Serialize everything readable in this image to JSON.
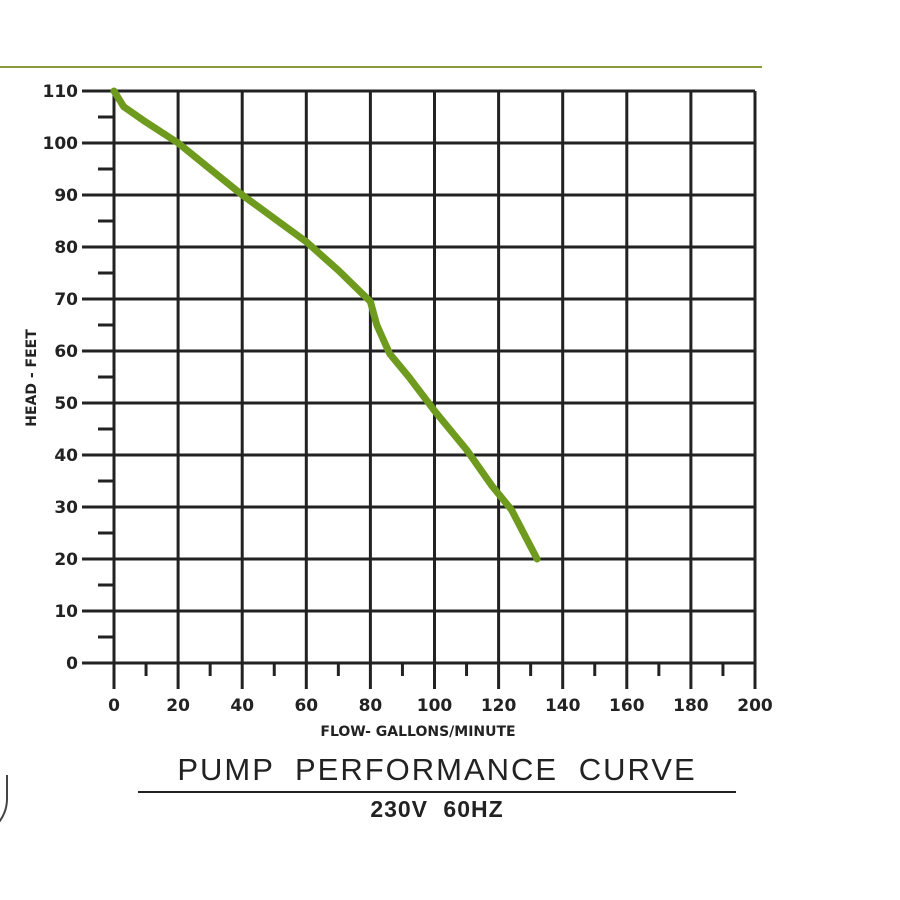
{
  "chart_data": {
    "type": "line",
    "title": "PUMP PERFORMANCE CURVE",
    "subtitle": "230V 60HZ",
    "xlabel": "FLOW- GALLONS/MINUTE",
    "ylabel": "HEAD - FEET",
    "xlim": [
      0,
      200
    ],
    "ylim": [
      0,
      110
    ],
    "x_ticks": [
      0,
      20,
      40,
      60,
      80,
      100,
      120,
      140,
      160,
      180,
      200
    ],
    "y_ticks": [
      0,
      10,
      20,
      30,
      40,
      50,
      60,
      70,
      80,
      90,
      100,
      110
    ],
    "grid": true,
    "legend": null,
    "series": [
      {
        "name": "Pump curve",
        "color": "#6e9a1e",
        "x": [
          0,
          3,
          10,
          20,
          30,
          40,
          50,
          60,
          70,
          80,
          82,
          86,
          92,
          100,
          110,
          118,
          124,
          132
        ],
        "y": [
          110,
          107,
          104,
          100,
          95,
          90,
          85.5,
          81,
          75.5,
          69.5,
          65,
          59.5,
          55,
          48.5,
          41,
          34,
          29.5,
          20
        ]
      }
    ]
  },
  "labels": {
    "x_tick_labels": [
      "0",
      "20",
      "40",
      "60",
      "80",
      "100",
      "120",
      "140",
      "160",
      "180",
      "200"
    ],
    "y_tick_labels": [
      "0",
      "10",
      "20",
      "30",
      "40",
      "50",
      "60",
      "70",
      "80",
      "90",
      "100",
      "110"
    ],
    "xlabel": "FLOW- GALLONS/MINUTE",
    "ylabel": "HEAD - FEET",
    "title": "PUMP PERFORMANCE CURVE",
    "subtitle": "230V 60HZ"
  },
  "colors": {
    "curve": "#6e9a1e",
    "grid": "#222222",
    "top_rule": "#8a9a3a"
  }
}
